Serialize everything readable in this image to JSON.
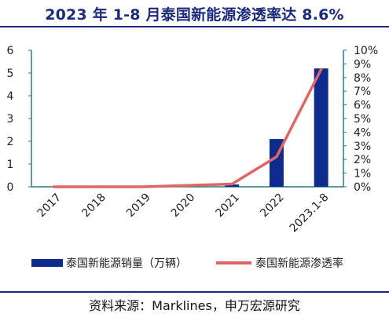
{
  "title": "2023 年 1-8 月泰国新能源渗透率达 8.6%",
  "source": "资料来源：Marklines，申万宏源研究",
  "colors": {
    "title": "#1a2a7c",
    "bar": "#0d2a8c",
    "line": "#e06666",
    "axis": "#2a7a86",
    "rule": "#1a2a7c"
  },
  "chart_data": {
    "type": "bar+line",
    "categories": [
      "2017",
      "2018",
      "2019",
      "2020",
      "2021",
      "2022",
      "2023.1-8"
    ],
    "series": [
      {
        "name": "泰国新能源销量（万辆）",
        "type": "bar",
        "axis": "left",
        "values": [
          0,
          0,
          0,
          0,
          0.1,
          2.1,
          5.2
        ]
      },
      {
        "name": "泰国新能源渗透率",
        "type": "line",
        "axis": "right",
        "values": [
          0.0,
          0.0,
          0.0,
          0.1,
          0.2,
          2.2,
          8.6
        ]
      }
    ],
    "yleft": {
      "lim": [
        0,
        6
      ],
      "ticks": [
        "0",
        "1",
        "2",
        "3",
        "4",
        "5",
        "6"
      ]
    },
    "yright": {
      "lim": [
        0,
        10
      ],
      "ticks": [
        "0%",
        "1%",
        "2%",
        "3%",
        "4%",
        "5%",
        "6%",
        "7%",
        "8%",
        "9%",
        "10%"
      ]
    },
    "legend_position": "bottom",
    "grid": false
  }
}
